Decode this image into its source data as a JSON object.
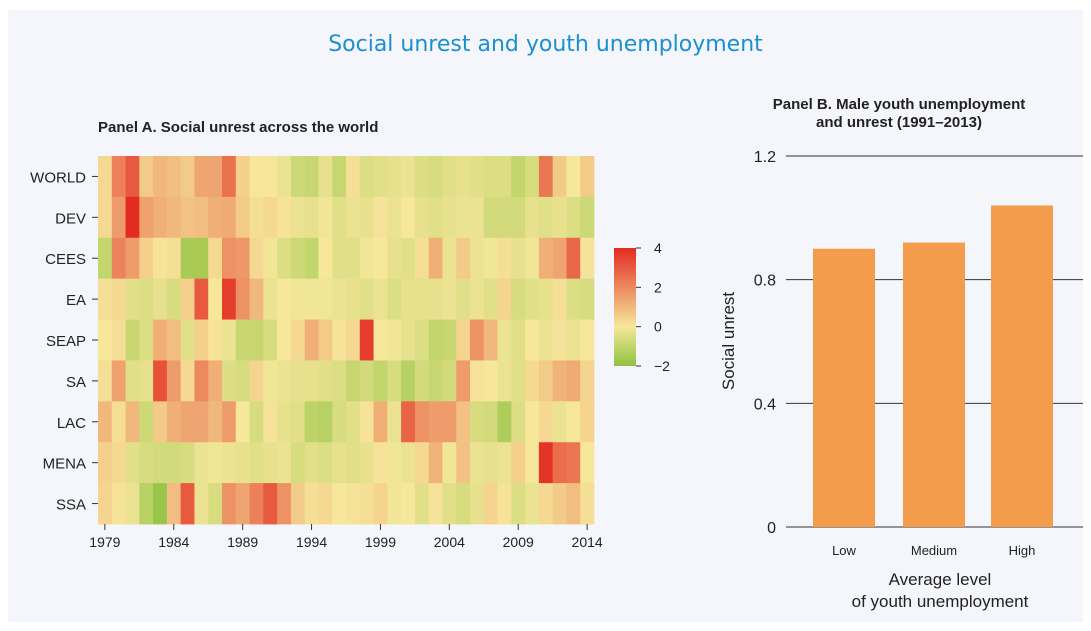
{
  "title": "Social unrest and youth unemployment",
  "colors": {
    "title": "#1b8fd0",
    "bar": "#f39c4c",
    "low": "#8fc23f",
    "mid": "#f6e79b",
    "high": "#e32b22"
  },
  "panel_a": {
    "title": "Panel A.  Social unrest across the world",
    "legend_ticks": [
      "4",
      "2",
      "0",
      "−2"
    ]
  },
  "panel_b": {
    "title_line1": "Panel B.  Male youth unemployment",
    "title_line2": "and unrest (1991–2013)"
  },
  "chart_data": [
    {
      "type": "heatmap",
      "title": "Panel A.  Social unrest across the world",
      "rows": [
        "WORLD",
        "DEV",
        "CEES",
        "EA",
        "SEAP",
        "SA",
        "LAC",
        "MENA",
        "SSA"
      ],
      "x_start": 1979,
      "x_end": 2014,
      "x_ticks": [
        "1979",
        "1984",
        "1989",
        "1994",
        "1999",
        "2004",
        "2009",
        "2014"
      ],
      "color_scale": {
        "min": -2,
        "max": 4,
        "colors": [
          "#8fc23f",
          "#f6e79b",
          "#e32b22"
        ]
      },
      "values": [
        [
          0.3,
          2.2,
          3.0,
          0.6,
          1.0,
          0.9,
          0.6,
          1.4,
          1.4,
          2.5,
          0.5,
          0.0,
          0.0,
          -0.2,
          -0.8,
          -0.9,
          -0.3,
          -0.9,
          0.2,
          -0.5,
          -0.4,
          -0.3,
          -0.2,
          -0.5,
          -0.6,
          -0.4,
          -0.3,
          -0.4,
          -0.5,
          -0.5,
          -1.0,
          -0.6,
          2.4,
          0.6,
          0.0,
          0.6
        ],
        [
          0.3,
          1.6,
          4.0,
          1.5,
          1.2,
          1.0,
          0.8,
          0.9,
          1.2,
          1.3,
          0.6,
          0.2,
          0.3,
          0.1,
          -0.2,
          -0.3,
          -0.1,
          -0.4,
          -0.2,
          -0.3,
          0.1,
          -0.2,
          0.0,
          -0.3,
          -0.4,
          -0.3,
          -0.2,
          -0.2,
          -0.7,
          -0.7,
          -0.7,
          -0.3,
          -0.4,
          -0.3,
          -0.5,
          -0.8
        ],
        [
          -1.0,
          2.1,
          1.6,
          0.5,
          0.1,
          0.2,
          -1.5,
          -1.5,
          0.3,
          1.8,
          1.7,
          0.3,
          -0.1,
          -0.5,
          -0.8,
          -1.0,
          0.0,
          -0.4,
          -0.4,
          -0.1,
          0.0,
          -0.3,
          -0.4,
          0.2,
          1.2,
          -0.2,
          0.6,
          -0.2,
          -0.1,
          0.2,
          -0.3,
          -0.1,
          1.2,
          1.4,
          2.7,
          0.1
        ],
        [
          0.2,
          0.3,
          -0.4,
          -0.5,
          -0.3,
          -0.6,
          0.5,
          3.0,
          0.0,
          3.6,
          1.8,
          1.0,
          -0.2,
          0.0,
          -0.1,
          -0.1,
          -0.1,
          -0.2,
          -0.3,
          -0.4,
          -0.2,
          -0.5,
          -0.3,
          -0.3,
          -0.3,
          -0.2,
          -0.4,
          -0.2,
          -0.4,
          0.4,
          -0.6,
          -0.4,
          -0.3,
          0.2,
          -0.5,
          -0.6
        ],
        [
          0.0,
          0.2,
          -0.9,
          -0.5,
          1.2,
          0.9,
          -0.4,
          0.5,
          0.1,
          -0.2,
          -0.9,
          -0.9,
          -0.6,
          0.0,
          0.3,
          1.2,
          0.6,
          0.1,
          0.3,
          3.6,
          0.0,
          -0.1,
          -0.3,
          -0.5,
          -1.0,
          -0.9,
          0.4,
          1.8,
          1.0,
          -0.2,
          -0.4,
          0.0,
          -0.2,
          0.1,
          -0.2,
          0.0
        ],
        [
          0.2,
          1.5,
          -0.4,
          -0.3,
          3.2,
          1.6,
          0.3,
          2.0,
          1.2,
          -0.5,
          -0.6,
          0.4,
          -0.1,
          -0.2,
          -0.3,
          -0.3,
          -0.4,
          -0.5,
          -0.9,
          -0.7,
          -1.0,
          -0.6,
          -1.2,
          -0.7,
          -0.9,
          -0.7,
          1.6,
          0.1,
          0.0,
          -0.2,
          -0.4,
          0.3,
          0.6,
          1.1,
          1.3,
          0.4
        ],
        [
          1.0,
          0.2,
          1.0,
          -0.8,
          0.6,
          1.2,
          1.4,
          1.4,
          1.0,
          1.6,
          0.0,
          -0.6,
          0.1,
          -0.3,
          -0.4,
          -1.1,
          -1.2,
          -0.6,
          -0.4,
          0.1,
          1.2,
          -0.2,
          2.8,
          1.8,
          1.6,
          1.6,
          0.8,
          -0.6,
          -0.7,
          -1.4,
          -0.5,
          0.0,
          0.3,
          -0.2,
          0.0,
          0.4
        ],
        [
          0.5,
          0.3,
          -0.4,
          -0.6,
          -0.7,
          -0.7,
          -0.6,
          -0.2,
          -0.1,
          -0.2,
          -0.3,
          -0.4,
          -0.3,
          -0.2,
          -0.6,
          -0.4,
          -0.5,
          -0.3,
          -0.4,
          -0.3,
          0.1,
          -0.1,
          -0.2,
          0.3,
          1.1,
          -0.1,
          0.8,
          -0.2,
          -0.3,
          -0.2,
          0.5,
          0.0,
          3.8,
          2.6,
          2.4,
          0.0
        ],
        [
          0.4,
          0.1,
          -0.2,
          -1.2,
          -1.8,
          0.9,
          3.0,
          -0.2,
          -0.6,
          1.8,
          1.4,
          2.2,
          3.0,
          1.8,
          0.6,
          0.2,
          0.3,
          0.0,
          0.1,
          0.2,
          0.4,
          -0.1,
          0.0,
          -0.4,
          0.1,
          -0.4,
          -0.6,
          -0.3,
          0.4,
          0.1,
          -0.5,
          -0.2,
          0.3,
          0.6,
          0.9,
          0.2
        ]
      ]
    },
    {
      "type": "bar",
      "title": "Panel B.  Male youth unemployment and unrest (1991–2013)",
      "categories": [
        "Low",
        "Medium",
        "High"
      ],
      "values": [
        0.9,
        0.92,
        1.04
      ],
      "ylabel": "Social unrest",
      "xlabel": "Average level of youth unemployment",
      "xlabel_lines": [
        "Average level",
        "of youth unemployment"
      ],
      "ylim": [
        0,
        1.2
      ],
      "y_ticks": [
        "0",
        "0.4",
        "0.8",
        "1.2"
      ],
      "grid": true
    }
  ]
}
